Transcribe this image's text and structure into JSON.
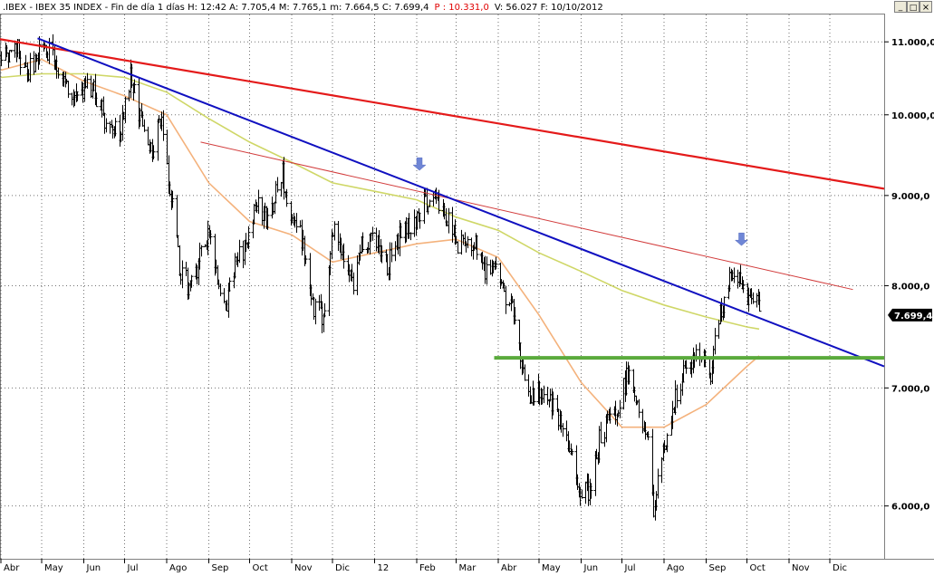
{
  "header": {
    "text": ".IBEX - IBEX 35 INDEX - Fin de día 1 días  H: 12:42  A: 7.705,4  M: 7.765,1  m: 7.664,5  C: 7.699,4",
    "p_text": "P : 10.331,0",
    "tail_text": "V: 56.027  F: 10/10/2012"
  },
  "window_controls": {
    "minimize": "_",
    "maximize": "□",
    "close": "×"
  },
  "colors": {
    "bars": "#000000",
    "ma_short": "#f4b27c",
    "ma_long": "#cfd767",
    "trend_red_thick": "#e41a1a",
    "trend_red_thin": "#d23c3c",
    "trend_blue": "#1010c0",
    "support_green": "#5aaa3c",
    "arrow": "#6f86d6",
    "grid": "#000000"
  },
  "chart_data": {
    "type": "candlestick",
    "title": ".IBEX - IBEX 35 INDEX",
    "y_scale": "log",
    "ylim": [
      5600,
      11400
    ],
    "y_ticks": [
      {
        "value": 6000,
        "label": "6.000,0"
      },
      {
        "value": 7000,
        "label": "7.000,0"
      },
      {
        "value": 8000,
        "label": "8.000,0"
      },
      {
        "value": 9000,
        "label": "9.000,0"
      },
      {
        "value": 10000,
        "label": "10.000,0"
      },
      {
        "value": 11000,
        "label": "11.000,0"
      }
    ],
    "last_price": {
      "value": 7699.4,
      "label": "7.699,4"
    },
    "xlim": [
      "2011-04-01",
      "2013-01-10"
    ],
    "x_ticks": [
      {
        "date": "2011-04-01",
        "label": "Abr"
      },
      {
        "date": "2011-05-01",
        "label": "May"
      },
      {
        "date": "2011-06-01",
        "label": "Jun"
      },
      {
        "date": "2011-07-01",
        "label": "Jul"
      },
      {
        "date": "2011-08-01",
        "label": "Ago"
      },
      {
        "date": "2011-09-01",
        "label": "Sep"
      },
      {
        "date": "2011-10-01",
        "label": "Oct"
      },
      {
        "date": "2011-11-01",
        "label": "Nov"
      },
      {
        "date": "2011-12-01",
        "label": "Dic"
      },
      {
        "date": "2012-01-01",
        "label": "12"
      },
      {
        "date": "2012-02-01",
        "label": "Feb"
      },
      {
        "date": "2012-03-01",
        "label": "Mar"
      },
      {
        "date": "2012-04-01",
        "label": "Abr"
      },
      {
        "date": "2012-05-01",
        "label": "May"
      },
      {
        "date": "2012-06-01",
        "label": "Jun"
      },
      {
        "date": "2012-07-01",
        "label": "Jul"
      },
      {
        "date": "2012-08-01",
        "label": "Ago"
      },
      {
        "date": "2012-09-01",
        "label": "Sep"
      },
      {
        "date": "2012-10-01",
        "label": "Oct"
      },
      {
        "date": "2012-11-01",
        "label": "Nov"
      },
      {
        "date": "2012-12-01",
        "label": "Dic"
      }
    ],
    "price_path": [
      [
        "2011-04-01",
        10800
      ],
      [
        "2011-04-12",
        10950
      ],
      [
        "2011-04-20",
        10550
      ],
      [
        "2011-05-03",
        10950
      ],
      [
        "2011-05-12",
        10700
      ],
      [
        "2011-05-24",
        10200
      ],
      [
        "2011-06-06",
        10400
      ],
      [
        "2011-06-16",
        9950
      ],
      [
        "2011-06-27",
        9800
      ],
      [
        "2011-07-05",
        10500
      ],
      [
        "2011-07-12",
        9950
      ],
      [
        "2011-07-19",
        9450
      ],
      [
        "2011-07-27",
        10000
      ],
      [
        "2011-08-04",
        9000
      ],
      [
        "2011-08-10",
        8200
      ],
      [
        "2011-08-18",
        7950
      ],
      [
        "2011-08-25",
        8300
      ],
      [
        "2011-09-01",
        8600
      ],
      [
        "2011-09-07",
        8100
      ],
      [
        "2011-09-13",
        7700
      ],
      [
        "2011-09-20",
        8300
      ],
      [
        "2011-09-28",
        8400
      ],
      [
        "2011-10-06",
        8900
      ],
      [
        "2011-10-14",
        8700
      ],
      [
        "2011-10-25",
        9250
      ],
      [
        "2011-10-31",
        8700
      ],
      [
        "2011-11-08",
        8500
      ],
      [
        "2011-11-17",
        7800
      ],
      [
        "2011-11-24",
        7700
      ],
      [
        "2011-12-01",
        8600
      ],
      [
        "2011-12-08",
        8300
      ],
      [
        "2011-12-16",
        8050
      ],
      [
        "2011-12-23",
        8500
      ],
      [
        "2012-01-03",
        8500
      ],
      [
        "2012-01-10",
        8200
      ],
      [
        "2012-01-20",
        8600
      ],
      [
        "2012-01-27",
        8650
      ],
      [
        "2012-02-03",
        8800
      ],
      [
        "2012-02-10",
        9000
      ],
      [
        "2012-02-17",
        8900
      ],
      [
        "2012-02-24",
        8700
      ],
      [
        "2012-03-02",
        8400
      ],
      [
        "2012-03-09",
        8500
      ],
      [
        "2012-03-16",
        8450
      ],
      [
        "2012-03-23",
        8100
      ],
      [
        "2012-03-30",
        8300
      ],
      [
        "2012-04-05",
        7900
      ],
      [
        "2012-04-12",
        7700
      ],
      [
        "2012-04-20",
        7100
      ],
      [
        "2012-04-26",
        6900
      ],
      [
        "2012-05-04",
        7000
      ],
      [
        "2012-05-11",
        6800
      ],
      [
        "2012-05-18",
        6600
      ],
      [
        "2012-05-25",
        6400
      ],
      [
        "2012-06-01",
        6100
      ],
      [
        "2012-06-08",
        6100
      ],
      [
        "2012-06-15",
        6600
      ],
      [
        "2012-06-22",
        6700
      ],
      [
        "2012-06-29",
        6850
      ],
      [
        "2012-07-06",
        7200
      ],
      [
        "2012-07-13",
        6800
      ],
      [
        "2012-07-20",
        6500
      ],
      [
        "2012-07-24",
        5950
      ],
      [
        "2012-07-31",
        6450
      ],
      [
        "2012-08-07",
        6800
      ],
      [
        "2012-08-14",
        7100
      ],
      [
        "2012-08-21",
        7250
      ],
      [
        "2012-08-28",
        7300
      ],
      [
        "2012-09-04",
        7150
      ],
      [
        "2012-09-07",
        7500
      ],
      [
        "2012-09-14",
        7850
      ],
      [
        "2012-09-21",
        8150
      ],
      [
        "2012-09-25",
        8050
      ],
      [
        "2012-10-01",
        7850
      ],
      [
        "2012-10-05",
        7950
      ],
      [
        "2012-10-10",
        7699
      ]
    ],
    "moving_averages": [
      {
        "name": "MA short",
        "color": "#f4b27c",
        "points": [
          [
            "2011-04-01",
            10600
          ],
          [
            "2011-05-01",
            10750
          ],
          [
            "2011-06-01",
            10450
          ],
          [
            "2011-07-01",
            10250
          ],
          [
            "2011-08-01",
            10000
          ],
          [
            "2011-09-01",
            9150
          ],
          [
            "2011-10-01",
            8700
          ],
          [
            "2011-11-01",
            8550
          ],
          [
            "2011-12-01",
            8250
          ],
          [
            "2012-01-01",
            8350
          ],
          [
            "2012-02-01",
            8450
          ],
          [
            "2012-03-01",
            8500
          ],
          [
            "2012-04-01",
            8300
          ],
          [
            "2012-05-01",
            7700
          ],
          [
            "2012-06-01",
            7050
          ],
          [
            "2012-07-01",
            6650
          ],
          [
            "2012-08-01",
            6650
          ],
          [
            "2012-09-01",
            6850
          ],
          [
            "2012-10-01",
            7200
          ],
          [
            "2012-10-10",
            7300
          ]
        ]
      },
      {
        "name": "MA long",
        "color": "#cfd767",
        "points": [
          [
            "2011-04-01",
            10500
          ],
          [
            "2011-05-01",
            10550
          ],
          [
            "2011-06-01",
            10550
          ],
          [
            "2011-07-01",
            10500
          ],
          [
            "2011-08-01",
            10300
          ],
          [
            "2011-09-01",
            9950
          ],
          [
            "2011-10-01",
            9650
          ],
          [
            "2011-11-01",
            9400
          ],
          [
            "2011-12-01",
            9150
          ],
          [
            "2012-01-01",
            9050
          ],
          [
            "2012-02-01",
            8950
          ],
          [
            "2012-03-01",
            8750
          ],
          [
            "2012-04-01",
            8600
          ],
          [
            "2012-05-01",
            8350
          ],
          [
            "2012-06-01",
            8150
          ],
          [
            "2012-07-01",
            7950
          ],
          [
            "2012-08-01",
            7800
          ],
          [
            "2012-09-01",
            7680
          ],
          [
            "2012-10-01",
            7580
          ],
          [
            "2012-10-10",
            7560
          ]
        ]
      }
    ],
    "trend_lines": [
      {
        "name": "red-thick",
        "color": "#e41a1a",
        "width": 2.2,
        "from": [
          "2011-03-28",
          11050
        ],
        "to": [
          "2013-01-10",
          9080
        ]
      },
      {
        "name": "red-thin",
        "color": "#d23c3c",
        "width": 1,
        "from": [
          "2011-08-26",
          9650
        ],
        "to": [
          "2012-12-18",
          7960
        ]
      },
      {
        "name": "blue",
        "color": "#1010c0",
        "width": 2,
        "from": [
          "2011-04-28",
          11050
        ],
        "to": [
          "2013-01-10",
          7200
        ]
      },
      {
        "name": "green-support",
        "color": "#5aaa3c",
        "width": 4,
        "from": [
          "2012-03-29",
          7280
        ],
        "to": [
          "2013-01-10",
          7280
        ]
      }
    ],
    "arrows": [
      {
        "date": "2012-02-03",
        "value": 9300
      },
      {
        "date": "2012-09-27",
        "value": 8430
      }
    ]
  }
}
